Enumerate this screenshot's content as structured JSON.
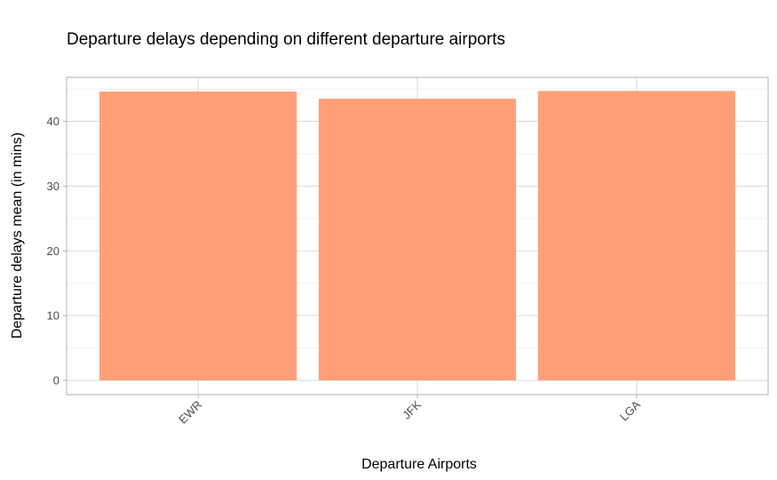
{
  "chart_data": {
    "type": "bar",
    "title": "Departure delays depending on different departure airports",
    "xlabel": "Departure Airports",
    "ylabel": "Departure delays mean (in mins)",
    "categories": [
      "EWR",
      "JFK",
      "LGA"
    ],
    "values": [
      44.6,
      43.5,
      44.7
    ],
    "ylim": [
      -2.2,
      46.8
    ],
    "yticks": [
      0,
      10,
      20,
      30,
      40
    ],
    "grid": true,
    "legend": "none",
    "bar_color": "#FFA07A"
  }
}
